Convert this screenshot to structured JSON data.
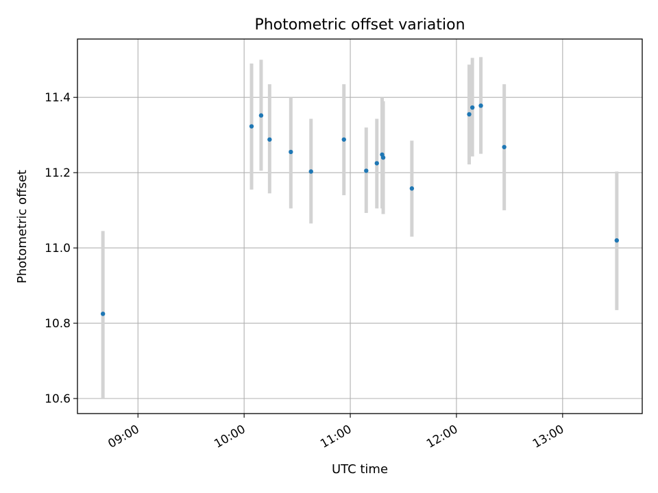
{
  "chart_data": {
    "type": "scatter",
    "title": "Photometric offset variation",
    "xlabel": "UTC time",
    "ylabel": "Photometric offset",
    "x_unit": "hours UTC",
    "xlim": [
      8.43,
      13.75
    ],
    "ylim": [
      10.56,
      11.555
    ],
    "x_ticks": [
      {
        "value": 9,
        "label": "09:00"
      },
      {
        "value": 10,
        "label": "10:00"
      },
      {
        "value": 11,
        "label": "11:00"
      },
      {
        "value": 12,
        "label": "12:00"
      },
      {
        "value": 13,
        "label": "13:00"
      }
    ],
    "y_ticks": [
      {
        "value": 10.6,
        "label": "10.6"
      },
      {
        "value": 10.8,
        "label": "10.8"
      },
      {
        "value": 11.0,
        "label": "11.0"
      },
      {
        "value": 11.2,
        "label": "11.2"
      },
      {
        "value": 11.4,
        "label": "11.4"
      }
    ],
    "grid": true,
    "point_color": "#1f77b4",
    "errorbar_color": "#d3d3d3",
    "points": [
      {
        "x": 8.67,
        "y": 10.825,
        "err_low": 10.6,
        "err_high": 11.045
      },
      {
        "x": 10.07,
        "y": 11.323,
        "err_low": 11.155,
        "err_high": 11.49
      },
      {
        "x": 10.16,
        "y": 11.352,
        "err_low": 11.205,
        "err_high": 11.5
      },
      {
        "x": 10.24,
        "y": 11.288,
        "err_low": 11.145,
        "err_high": 11.435
      },
      {
        "x": 10.44,
        "y": 11.255,
        "err_low": 11.105,
        "err_high": 11.4
      },
      {
        "x": 10.63,
        "y": 11.203,
        "err_low": 11.065,
        "err_high": 11.343
      },
      {
        "x": 10.94,
        "y": 11.288,
        "err_low": 11.14,
        "err_high": 11.435
      },
      {
        "x": 11.15,
        "y": 11.205,
        "err_low": 11.093,
        "err_high": 11.32
      },
      {
        "x": 11.25,
        "y": 11.225,
        "err_low": 11.105,
        "err_high": 11.343
      },
      {
        "x": 11.3,
        "y": 11.248,
        "err_low": 11.105,
        "err_high": 11.4
      },
      {
        "x": 11.31,
        "y": 11.24,
        "err_low": 11.09,
        "err_high": 11.39
      },
      {
        "x": 11.58,
        "y": 11.158,
        "err_low": 11.03,
        "err_high": 11.285
      },
      {
        "x": 12.12,
        "y": 11.355,
        "err_low": 11.222,
        "err_high": 11.487
      },
      {
        "x": 12.15,
        "y": 11.373,
        "err_low": 11.243,
        "err_high": 11.505
      },
      {
        "x": 12.23,
        "y": 11.378,
        "err_low": 11.25,
        "err_high": 11.507
      },
      {
        "x": 12.45,
        "y": 11.268,
        "err_low": 11.1,
        "err_high": 11.435
      },
      {
        "x": 13.51,
        "y": 11.02,
        "err_low": 10.835,
        "err_high": 11.203
      }
    ]
  }
}
